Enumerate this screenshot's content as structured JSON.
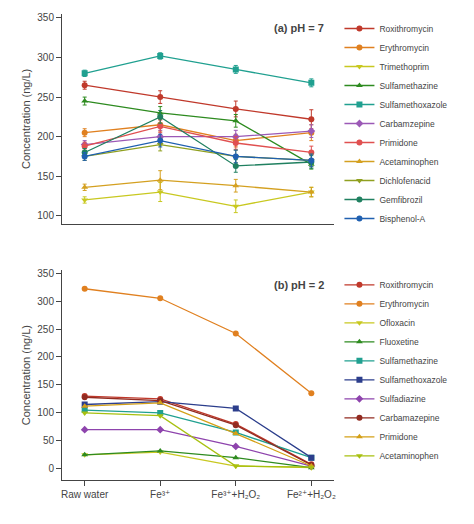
{
  "chart_data": [
    {
      "type": "line",
      "title": "(a) pH = 7",
      "y_label": "Concentration (ng/L)",
      "categories": [
        null,
        null,
        null,
        null
      ],
      "tick_labels": "y",
      "ylim": [
        90,
        355
      ],
      "yticks": [
        100,
        150,
        200,
        250,
        300,
        350
      ],
      "grid": false,
      "legend": "right",
      "series": [
        {
          "name": "Roxithromycin",
          "color": "#c0392b",
          "marker": "circle",
          "line_style": "solid",
          "values": [
            265,
            250,
            235,
            222
          ],
          "errors": [
            5,
            8,
            10,
            12
          ]
        },
        {
          "name": "Erythromycin",
          "color": "#e08020",
          "marker": "circle",
          "line_style": "solid",
          "values": [
            205,
            215,
            195,
            205
          ],
          "errors": [
            5,
            8,
            8,
            10
          ]
        },
        {
          "name": "Trimethoprim",
          "color": "#c8c820",
          "marker": "triangle-down",
          "line_style": "solid",
          "values": [
            120,
            130,
            112,
            130
          ],
          "errors": [
            4,
            12,
            8,
            6
          ]
        },
        {
          "name": "Sulfamethazine",
          "color": "#2e8b20",
          "marker": "triangle-up",
          "line_style": "solid",
          "values": [
            245,
            230,
            220,
            165
          ],
          "errors": [
            5,
            8,
            8,
            6
          ]
        },
        {
          "name": "Sulfamethoxazole",
          "color": "#20a090",
          "marker": "square",
          "line_style": "solid",
          "values": [
            280,
            302,
            285,
            268
          ],
          "errors": [
            4,
            4,
            5,
            5
          ]
        },
        {
          "name": "Carbamzepine",
          "color": "#9b59b6",
          "marker": "diamond",
          "line_style": "solid",
          "values": [
            190,
            200,
            200,
            207
          ],
          "errors": [
            5,
            8,
            8,
            8
          ]
        },
        {
          "name": "Primidone",
          "color": "#e05050",
          "marker": "circle",
          "line_style": "solid",
          "values": [
            188,
            213,
            192,
            180
          ],
          "errors": [
            5,
            8,
            8,
            8
          ]
        },
        {
          "name": "Acetaminophen",
          "color": "#d4a020",
          "marker": "triangle-up",
          "line_style": "solid",
          "values": [
            136,
            145,
            138,
            130
          ],
          "errors": [
            4,
            12,
            8,
            6
          ]
        },
        {
          "name": "Dichlofenacid",
          "color": "#90a020",
          "marker": "triangle-down",
          "line_style": "solid",
          "values": [
            175,
            190,
            175,
            170
          ],
          "errors": [
            5,
            8,
            8,
            8
          ]
        },
        {
          "name": "Gemfibrozil",
          "color": "#208060",
          "marker": "circle",
          "line_style": "solid",
          "values": [
            180,
            225,
            163,
            168
          ],
          "errors": [
            5,
            8,
            8,
            8
          ]
        },
        {
          "name": "Bisphenol-A",
          "color": "#2060b0",
          "marker": "circle",
          "line_style": "solid",
          "values": [
            175,
            195,
            175,
            170
          ],
          "errors": [
            5,
            8,
            8,
            8
          ]
        }
      ]
    },
    {
      "type": "line",
      "title": "(b) pH = 2",
      "y_label": "Concentration (ng/L)",
      "categories": [
        "Raw water",
        "Fe³⁺",
        "Fe³⁺+H₂O₂",
        "Fe²⁺+H₂O₂"
      ],
      "ylim": [
        -20,
        355
      ],
      "yticks": [
        0,
        50,
        100,
        150,
        200,
        250,
        300,
        350
      ],
      "grid": false,
      "legend": "right",
      "series": [
        {
          "name": "Roxithromycin",
          "color": "#c0392b",
          "marker": "circle",
          "line_style": "solid",
          "values": [
            130,
            125,
            80,
            8
          ]
        },
        {
          "name": "Erythromycin",
          "color": "#e08020",
          "marker": "circle",
          "line_style": "solid",
          "values": [
            322,
            305,
            242,
            135
          ]
        },
        {
          "name": "Ofloxacin",
          "color": "#c8c820",
          "marker": "triangle-down",
          "line_style": "solid",
          "values": [
            25,
            30,
            5,
            2
          ]
        },
        {
          "name": "Fluoxetine",
          "color": "#2e8b20",
          "marker": "triangle-up",
          "line_style": "solid",
          "values": [
            25,
            32,
            20,
            2
          ]
        },
        {
          "name": "Sulfamethazine",
          "color": "#20a090",
          "marker": "square",
          "line_style": "solid",
          "values": [
            105,
            100,
            65,
            20
          ]
        },
        {
          "name": "Sulfamethoxazole",
          "color": "#2c3e8c",
          "marker": "square",
          "line_style": "solid",
          "values": [
            115,
            120,
            108,
            20
          ]
        },
        {
          "name": "Sulfadiazine",
          "color": "#8e44ad",
          "marker": "diamond",
          "line_style": "solid",
          "values": [
            70,
            70,
            40,
            5
          ]
        },
        {
          "name": "Carbamazepine",
          "color": "#922b21",
          "marker": "circle",
          "line_style": "solid",
          "values": [
            128,
            122,
            78,
            7
          ]
        },
        {
          "name": "Primidone",
          "color": "#d4a017",
          "marker": "triangle-up",
          "line_style": "solid",
          "values": [
            112,
            118,
            63,
            5
          ]
        },
        {
          "name": "Acetaminophen",
          "color": "#a8c010",
          "marker": "triangle-down",
          "line_style": "solid",
          "values": [
            100,
            95,
            5,
            3
          ]
        }
      ]
    }
  ]
}
